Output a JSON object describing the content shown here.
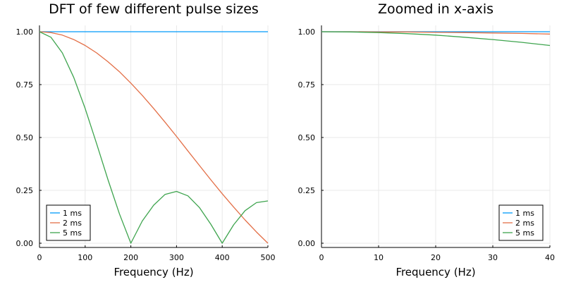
{
  "colors": {
    "series": [
      "#009AFA",
      "#E36F47",
      "#3EA44E"
    ],
    "grid": "#E8E8E8",
    "axis": "#000000"
  },
  "chart_data": [
    {
      "type": "line",
      "title": "DFT of few different pulse sizes",
      "xlabel": "Frequency (Hz)",
      "ylabel": "",
      "xlim": [
        0,
        500
      ],
      "ylim": [
        -0.02,
        1.03
      ],
      "xticks": [
        0,
        100,
        200,
        300,
        400,
        500
      ],
      "xtick_labels": [
        "0",
        "100",
        "200",
        "300",
        "400",
        "500"
      ],
      "yticks": [
        0.0,
        0.25,
        0.5,
        0.75,
        1.0
      ],
      "ytick_labels": [
        "0.00",
        "0.25",
        "0.50",
        "0.75",
        "1.00"
      ],
      "grid": true,
      "legend_position": "bottom-left",
      "series": [
        {
          "name": "1 ms",
          "x": [
            0,
            50,
            100,
            150,
            200,
            250,
            300,
            350,
            400,
            450,
            500
          ],
          "y": [
            1.0,
            1.0,
            1.0,
            1.0,
            1.0,
            1.0,
            1.0,
            1.0,
            1.0,
            1.0,
            1.0
          ]
        },
        {
          "name": "2 ms",
          "x": [
            0,
            25,
            50,
            75,
            100,
            125,
            150,
            175,
            200,
            225,
            250,
            275,
            300,
            325,
            350,
            375,
            400,
            425,
            450,
            475,
            500
          ],
          "y": [
            1.0,
            0.996,
            0.984,
            0.963,
            0.935,
            0.9,
            0.858,
            0.811,
            0.757,
            0.699,
            0.637,
            0.572,
            0.505,
            0.436,
            0.368,
            0.3,
            0.234,
            0.171,
            0.11,
            0.053,
            0.0
          ]
        },
        {
          "name": "5 ms",
          "x": [
            0,
            25,
            50,
            75,
            100,
            125,
            150,
            175,
            200,
            225,
            250,
            275,
            300,
            325,
            350,
            375,
            400,
            425,
            450,
            475,
            500
          ],
          "y": [
            1.0,
            0.974,
            0.9,
            0.784,
            0.637,
            0.471,
            0.3,
            0.139,
            0.0,
            0.105,
            0.18,
            0.231,
            0.245,
            0.224,
            0.169,
            0.09,
            0.0,
            0.087,
            0.154,
            0.192,
            0.2
          ]
        }
      ]
    },
    {
      "type": "line",
      "title": "Zoomed in x-axis",
      "xlabel": "Frequency (Hz)",
      "ylabel": "",
      "xlim": [
        0,
        40
      ],
      "ylim": [
        -0.02,
        1.03
      ],
      "xticks": [
        0,
        10,
        20,
        30,
        40
      ],
      "xtick_labels": [
        "0",
        "10",
        "20",
        "30",
        "40"
      ],
      "yticks": [
        0.0,
        0.25,
        0.5,
        0.75,
        1.0
      ],
      "ytick_labels": [
        "0.00",
        "0.25",
        "0.50",
        "0.75",
        "1.00"
      ],
      "grid": true,
      "legend_position": "bottom-right",
      "series": [
        {
          "name": "1 ms",
          "x": [
            0,
            5,
            10,
            15,
            20,
            25,
            30,
            35,
            40
          ],
          "y": [
            1.0,
            1.0,
            1.0,
            1.0,
            1.0,
            1.0,
            1.0,
            1.0,
            1.0
          ]
        },
        {
          "name": "2 ms",
          "x": [
            0,
            5,
            10,
            15,
            20,
            25,
            30,
            35,
            40
          ],
          "y": [
            1.0,
            1.0,
            0.999,
            0.999,
            0.997,
            0.996,
            0.994,
            0.992,
            0.989
          ]
        },
        {
          "name": "5 ms",
          "x": [
            0,
            5,
            10,
            15,
            20,
            25,
            30,
            35,
            40
          ],
          "y": [
            1.0,
            0.999,
            0.996,
            0.991,
            0.984,
            0.974,
            0.963,
            0.95,
            0.935
          ]
        }
      ]
    }
  ]
}
